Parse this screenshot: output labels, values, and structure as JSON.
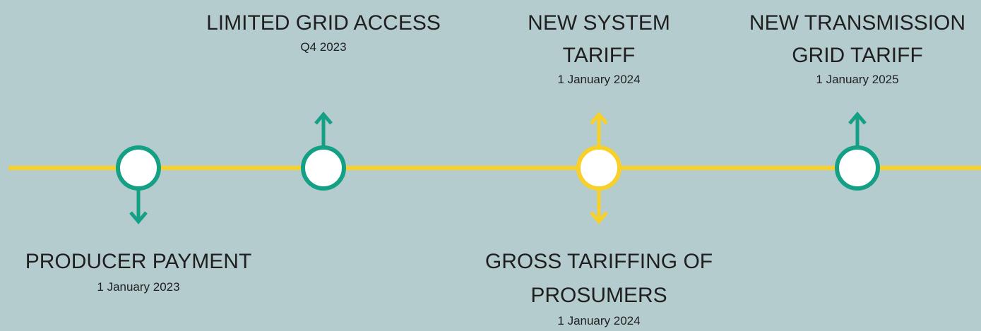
{
  "events": [
    {
      "title_lines": [
        "PRODUCER PAYMENT"
      ],
      "date": "1 January 2023",
      "side": "below",
      "color": "#13a085"
    },
    {
      "title_lines": [
        "LIMITED GRID ACCESS"
      ],
      "date": "Q4 2023",
      "side": "above",
      "color": "#13a085"
    },
    {
      "title_lines": [
        "NEW SYSTEM",
        "TARIFF"
      ],
      "date": "1 January 2024",
      "side": "above",
      "color": "#f7d02a"
    },
    {
      "title_lines": [
        "GROSS TARIFFING OF",
        "PROSUMERS"
      ],
      "date": "1 January 2024",
      "side": "below",
      "color": "#f7d02a"
    },
    {
      "title_lines": [
        "NEW TRANSMISSION",
        "GRID TARIFF"
      ],
      "date": "1 January 2025",
      "side": "above",
      "color": "#13a085"
    }
  ],
  "line_color": "#f7d02a"
}
